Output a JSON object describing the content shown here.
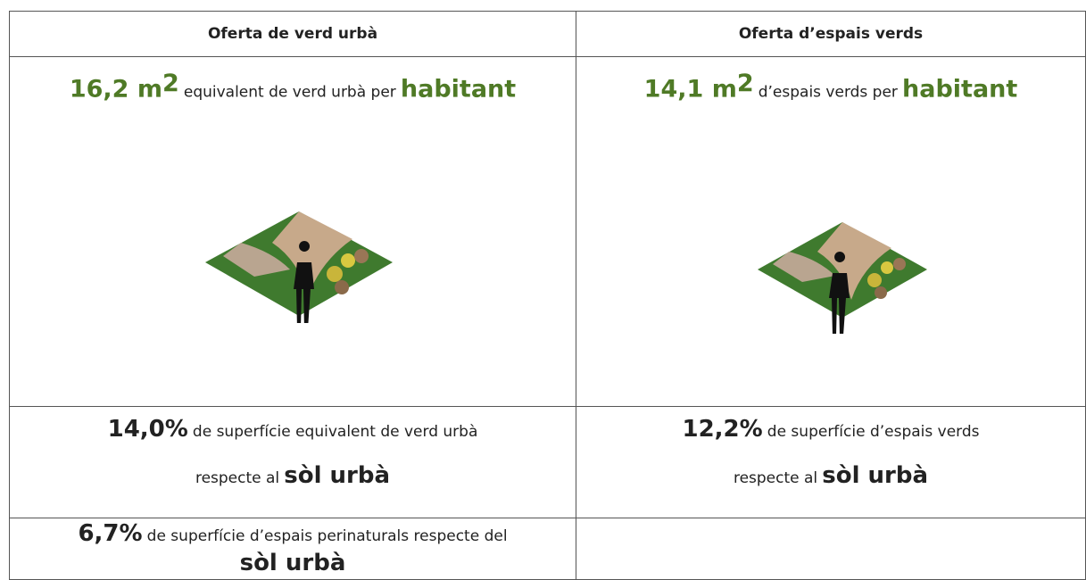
{
  "table": {
    "headers": [
      "Oferta de verd urbà",
      "Oferta d’espais verds"
    ],
    "rows": [
      [
        {
          "figure": "16,2 m",
          "sup": "2",
          "text": "equivalent de verd urbà per",
          "emphasis": "habitant"
        },
        {
          "figure": "14,1 m",
          "sup": "2",
          "text": "d’espais verds per",
          "emphasis": "habitant"
        }
      ],
      [
        {
          "figure": "14,0%",
          "text": "de superfície equivalent de verd urbà",
          "text2": "respecte al",
          "emphasis": "sòl urbà"
        },
        {
          "figure": "12,2%",
          "text": "de superfície d’espais verds",
          "text2": "respecte al",
          "emphasis": "sòl urbà"
        }
      ],
      [
        {
          "figure": "6,7%",
          "text": "de superfície d’espais perinaturals respecte del",
          "emphasis": "sòl urbà"
        }
      ]
    ]
  }
}
